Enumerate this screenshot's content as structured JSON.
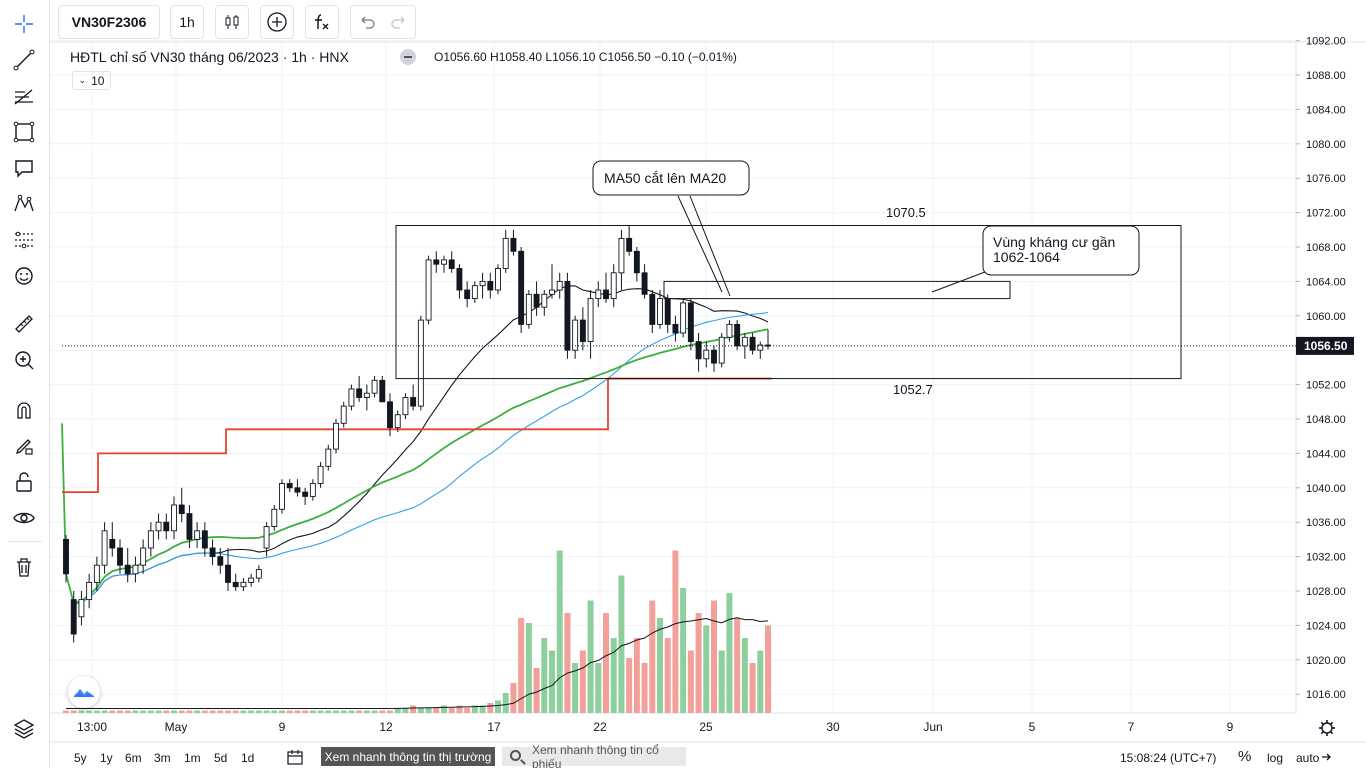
{
  "toolbar": {
    "symbol": "VN30F2306",
    "interval": "1h"
  },
  "legend": {
    "title": "HĐTL chỉ số VN30 tháng 06/2023 · 1h · HNX",
    "values": "O1056.60 H1058.40 L1056.10 C1056.50 −0.10 (−0.01%)",
    "indicator_count": "10"
  },
  "price_axis": {
    "ticks": [
      "1092.00",
      "1088.00",
      "1084.00",
      "1080.00",
      "1076.00",
      "1072.00",
      "1068.00",
      "1064.00",
      "1060.00",
      "1056.00",
      "1052.00",
      "1048.00",
      "1044.00",
      "1040.00",
      "1036.00",
      "1032.00",
      "1028.00",
      "1024.00",
      "1020.00",
      "1016.00"
    ],
    "last_price": "1056.50"
  },
  "time_axis": {
    "labels": [
      "13:00",
      "May",
      "9",
      "12",
      "17",
      "22",
      "25",
      "30",
      "Jun",
      "5",
      "7",
      "9"
    ]
  },
  "annotations": {
    "callout_ma": "MA50 cắt lên MA20",
    "callout_resistance_line1": "Vùng kháng cư gần",
    "callout_resistance_line2": "1062-1064",
    "range_top": "1070.5",
    "range_bottom": "1052.7"
  },
  "bottom": {
    "ranges": [
      "5y",
      "1y",
      "6m",
      "3m",
      "1m",
      "5d",
      "1d"
    ],
    "market_button": "Xem nhanh thông tin thị trường",
    "stock_button": "Xem nhanh thông tin cổ phiếu",
    "clock": "15:08:24 (UTC+7)",
    "percent": "%",
    "log": "log",
    "auto": "auto"
  },
  "colors": {
    "up_volume": "#8ecf9e",
    "down_volume": "#f2a09a",
    "ma_black": "#131722",
    "ma_blue": "#2fa3e8",
    "ma_green": "#3eaf3f",
    "stop_red": "#e8412c"
  },
  "chart_data": {
    "type": "candlestick",
    "interval": "1h",
    "ylim": [
      1014,
      1093
    ],
    "last_close": 1056.5,
    "candles": [
      [
        1034,
        1034.5,
        1029,
        1030
      ],
      [
        1027,
        1028,
        1022,
        1023
      ],
      [
        1025,
        1028,
        1024,
        1027
      ],
      [
        1027,
        1030,
        1026,
        1029
      ],
      [
        1029,
        1032,
        1028,
        1031
      ],
      [
        1031,
        1036,
        1030,
        1035
      ],
      [
        1034,
        1036,
        1032,
        1033
      ],
      [
        1033,
        1034,
        1030,
        1031
      ],
      [
        1031,
        1033,
        1029,
        1030
      ],
      [
        1030,
        1032,
        1029,
        1031
      ],
      [
        1031,
        1034,
        1030,
        1033
      ],
      [
        1033,
        1036,
        1032,
        1035
      ],
      [
        1035,
        1037,
        1034,
        1036
      ],
      [
        1036,
        1037,
        1034,
        1035
      ],
      [
        1035,
        1039,
        1034,
        1038
      ],
      [
        1038,
        1040,
        1036,
        1037
      ],
      [
        1037,
        1038,
        1033,
        1034
      ],
      [
        1034,
        1036,
        1033,
        1035
      ],
      [
        1035,
        1036,
        1032,
        1033
      ],
      [
        1033,
        1034,
        1031,
        1032
      ],
      [
        1032,
        1033,
        1030,
        1031
      ],
      [
        1031,
        1033,
        1028,
        1029
      ],
      [
        1029,
        1030,
        1028,
        1028.5
      ],
      [
        1028.5,
        1029.5,
        1028,
        1029
      ],
      [
        1029,
        1030,
        1028.5,
        1029.5
      ],
      [
        1029.5,
        1031,
        1029,
        1030.5
      ],
      [
        1033,
        1036,
        1032,
        1035.5
      ],
      [
        1035.5,
        1038,
        1035,
        1037.5
      ],
      [
        1037.5,
        1041,
        1037,
        1040.5
      ],
      [
        1040.5,
        1041,
        1039.5,
        1040
      ],
      [
        1040,
        1041,
        1039,
        1039.5
      ],
      [
        1039.5,
        1040,
        1038,
        1039
      ],
      [
        1039,
        1041,
        1038.5,
        1040.5
      ],
      [
        1040.5,
        1043,
        1040,
        1042.5
      ],
      [
        1042.5,
        1045,
        1042,
        1044.5
      ],
      [
        1044.5,
        1048,
        1044,
        1047.5
      ],
      [
        1047.5,
        1050,
        1047,
        1049.5
      ],
      [
        1049.5,
        1052,
        1049,
        1051.5
      ],
      [
        1051.5,
        1053,
        1050,
        1050.5
      ],
      [
        1050.5,
        1052,
        1049,
        1051
      ],
      [
        1051,
        1053,
        1050.5,
        1052.5
      ],
      [
        1052.5,
        1053,
        1050,
        1050
      ],
      [
        1050,
        1051,
        1046,
        1047
      ],
      [
        1047,
        1049,
        1046.5,
        1048.5
      ],
      [
        1048.5,
        1051,
        1048,
        1050.5
      ],
      [
        1050.5,
        1052,
        1049,
        1049.5
      ],
      [
        1049.5,
        1060,
        1049,
        1059.5
      ],
      [
        1059.5,
        1067,
        1059,
        1066.5
      ],
      [
        1066.5,
        1067.5,
        1065,
        1066
      ],
      [
        1066,
        1067,
        1065,
        1066.5
      ],
      [
        1066.5,
        1067.5,
        1065,
        1065.5
      ],
      [
        1065.5,
        1066,
        1062,
        1063
      ],
      [
        1063,
        1064,
        1061,
        1062
      ],
      [
        1062,
        1064,
        1061.5,
        1063.5
      ],
      [
        1063.5,
        1065,
        1062,
        1064
      ],
      [
        1064,
        1065,
        1062,
        1063
      ],
      [
        1063,
        1066,
        1062.5,
        1065.5
      ],
      [
        1065.5,
        1070,
        1065,
        1069
      ],
      [
        1069,
        1070,
        1067,
        1067.5
      ],
      [
        1067.5,
        1068,
        1058,
        1059
      ],
      [
        1059,
        1063,
        1058.5,
        1062.5
      ],
      [
        1062.5,
        1064,
        1060,
        1061
      ],
      [
        1061,
        1063,
        1060,
        1062.5
      ],
      [
        1062.5,
        1066,
        1062,
        1063
      ],
      [
        1063,
        1065,
        1062,
        1064
      ],
      [
        1064,
        1065,
        1055,
        1056
      ],
      [
        1056,
        1060,
        1055,
        1059.5
      ],
      [
        1059.5,
        1061,
        1056,
        1057
      ],
      [
        1057,
        1063,
        1055,
        1062
      ],
      [
        1062,
        1064,
        1061,
        1063
      ],
      [
        1063,
        1065,
        1061.5,
        1062
      ],
      [
        1062,
        1066,
        1061,
        1065
      ],
      [
        1065,
        1070,
        1063,
        1069
      ],
      [
        1069,
        1070.5,
        1067,
        1067.5
      ],
      [
        1067.5,
        1068,
        1064,
        1065
      ],
      [
        1065,
        1066,
        1062,
        1062.5
      ],
      [
        1062.5,
        1063,
        1058,
        1059
      ],
      [
        1059,
        1063,
        1058.5,
        1062
      ],
      [
        1062,
        1062.5,
        1058,
        1059
      ],
      [
        1059,
        1060,
        1057,
        1058
      ],
      [
        1058,
        1062,
        1057.5,
        1061.5
      ],
      [
        1061.5,
        1062,
        1056,
        1057
      ],
      [
        1057,
        1058,
        1053.5,
        1055
      ],
      [
        1055,
        1057,
        1054,
        1056
      ],
      [
        1056,
        1056.5,
        1053.5,
        1054.5
      ],
      [
        1054.5,
        1058,
        1054,
        1057.5
      ],
      [
        1057.5,
        1059.5,
        1057,
        1059
      ],
      [
        1059,
        1059.5,
        1056,
        1056.5
      ],
      [
        1056.5,
        1058,
        1055,
        1057.5
      ],
      [
        1057.5,
        1058,
        1055.5,
        1056
      ],
      [
        1056,
        1057,
        1055,
        1056.6
      ],
      [
        1056.6,
        1058.4,
        1056.1,
        1056.5
      ]
    ],
    "annotation_ranges": {
      "upper": 1070.5,
      "lower": 1052.7,
      "resistance": [
        1062,
        1064
      ]
    }
  }
}
